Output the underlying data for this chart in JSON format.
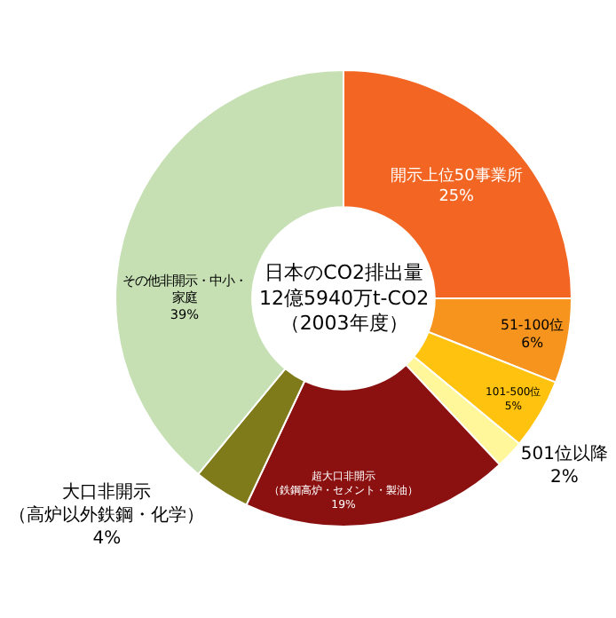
{
  "chart_data": {
    "type": "donut",
    "title": "日本のCO2排出量\n12億5940万t-CO2\n（2003年度）",
    "categories": [
      "開示上位50事業所",
      "51-100位",
      "101-500位",
      "501位以降",
      "超大口非開示（鉄鋼高炉・セメント・製油）",
      "大口非開示（高炉以外鉄鋼・化学）",
      "その他非開示・中小・家庭"
    ],
    "values": [
      25,
      6,
      5,
      2,
      19,
      4,
      39
    ],
    "value_labels": [
      "25%",
      "6%",
      "5%",
      "2%",
      "19%",
      "4%",
      "39%"
    ],
    "colors": [
      "#f26522",
      "#f7941d",
      "#ffc20e",
      "#fff799",
      "#8b1111",
      "#7f7a1a",
      "#c6e0b4"
    ],
    "legend": false
  }
}
